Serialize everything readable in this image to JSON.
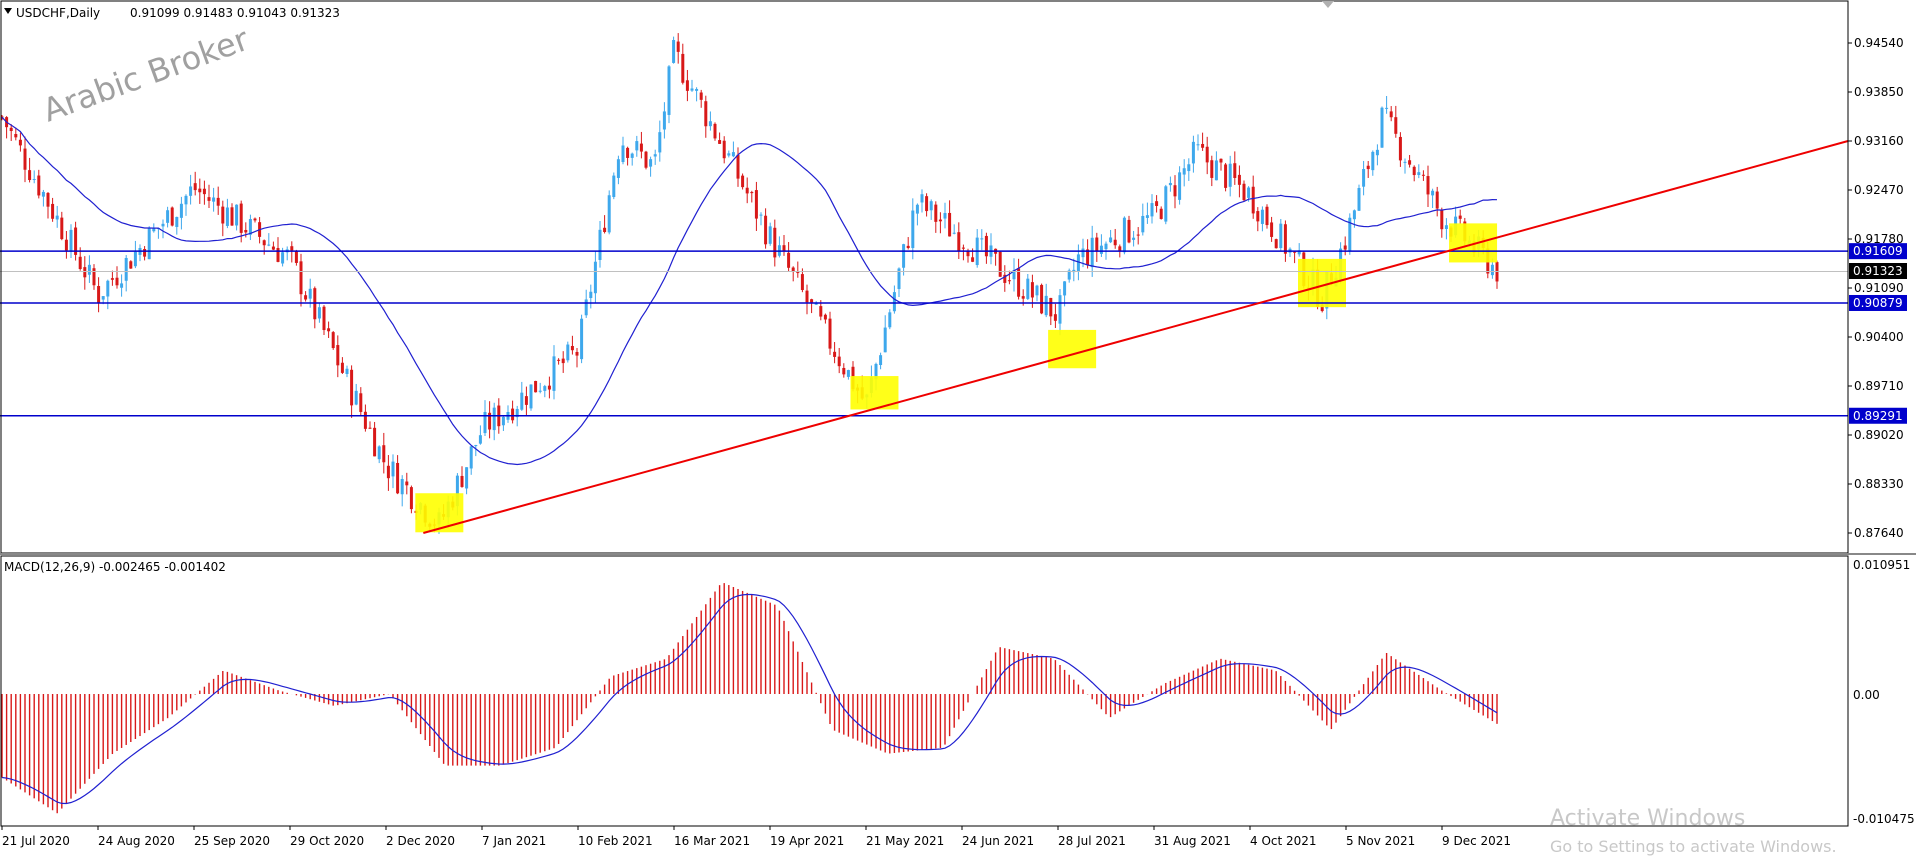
{
  "chart_data": [
    {
      "type": "candlestick",
      "header": {
        "symbol_label": "USDCHF,Daily",
        "ohlc_text": "0.91099 0.91483 0.91043 0.91323"
      },
      "watermark": "Arabic Broker",
      "price_axis": {
        "ticks": [
          "0.94540",
          "0.93850",
          "0.93160",
          "0.92470",
          "0.91780",
          "0.91090",
          "0.90400",
          "0.89710",
          "0.89020",
          "0.88330",
          "0.87640"
        ],
        "tick_values": [
          0.9454,
          0.9385,
          0.9316,
          0.9247,
          0.9178,
          0.9109,
          0.904,
          0.8971,
          0.8902,
          0.8833,
          0.8764
        ]
      },
      "x_axis": {
        "ticks": [
          "21 Jul 2020",
          "24 Aug 2020",
          "25 Sep 2020",
          "29 Oct 2020",
          "2 Dec 2020",
          "7 Jan 2021",
          "10 Feb 2021",
          "16 Mar 2021",
          "19 Apr 2021",
          "21 May 2021",
          "24 Jun 2021",
          "28 Jul 2021",
          "31 Aug 2021",
          "4 Oct 2021",
          "5 Nov 2021",
          "9 Dec 2021"
        ]
      },
      "horizontal_levels": [
        {
          "label": "0.91609",
          "value": 0.91609,
          "color": "#0000cc"
        },
        {
          "label": "0.90879",
          "value": 0.90879,
          "color": "#0000cc"
        },
        {
          "label": "0.89291",
          "value": 0.89291,
          "color": "#0000cc"
        }
      ],
      "current_price": {
        "label": "0.91323",
        "value": 0.91323
      },
      "trendline": {
        "color": "#ee0000",
        "from": {
          "date": "16 Dec 2020",
          "price": 0.8764
        },
        "to": {
          "date": "end of visible range",
          "price": 0.9316
        }
      },
      "moving_average_color": "#2020d0",
      "bull_color": "#3ea8ec",
      "bear_color": "#d81818",
      "highlight_color": "#ffff00",
      "highlight_zones": [
        {
          "near": "22 Dec 2020",
          "price_range": [
            0.8765,
            0.882
          ]
        },
        {
          "near": "24 May 2021",
          "price_range": [
            0.8938,
            0.8985
          ]
        },
        {
          "near": "2 Aug 2021",
          "price_range": [
            0.8996,
            0.905
          ]
        },
        {
          "near": "28 Oct 2021",
          "price_range": [
            0.9082,
            0.915
          ]
        },
        {
          "near": "20 Dec 2021",
          "price_range": [
            0.9145,
            0.92
          ]
        }
      ],
      "approx_series": {
        "dates": [
          "21 Jul 2020",
          "24 Aug 2020",
          "25 Sep 2020",
          "29 Oct 2020",
          "2 Dec 2020",
          "22 Dec 2020",
          "7 Jan 2021",
          "10 Feb 2021",
          "25 Feb 2021",
          "9 Mar 2021",
          "16 Mar 2021",
          "19 Apr 2021",
          "21 May 2021",
          "8 Jun 2021",
          "24 Jun 2021",
          "28 Jul 2021",
          "4 Aug 2021",
          "31 Aug 2021",
          "15 Sep 2021",
          "4 Oct 2021",
          "28 Oct 2021",
          "5 Nov 2021",
          "18 Nov 2021",
          "9 Dec 2021",
          "29 Dec 2021"
        ],
        "close": [
          0.935,
          0.91,
          0.925,
          0.915,
          0.886,
          0.8775,
          0.891,
          0.902,
          0.932,
          0.928,
          0.944,
          0.918,
          0.8945,
          0.923,
          0.918,
          0.907,
          0.915,
          0.921,
          0.93,
          0.924,
          0.9095,
          0.918,
          0.935,
          0.921,
          0.9132
        ]
      }
    },
    {
      "type": "histogram",
      "title": "MACD(12,26,9) -0.002465 -0.001402",
      "y_ticks": [
        "0.010951",
        "0.00",
        "-0.010475"
      ],
      "ylim": [
        -0.010475,
        0.010951
      ],
      "histogram_color": "#d81818",
      "signal_color": "#2020d0",
      "approx_macd": [
        -0.007,
        -0.01,
        -0.005,
        -0.002,
        0.002,
        0.0003,
        -0.001,
        0.0,
        -0.006,
        -0.006,
        -0.0045,
        0.0015,
        0.003,
        0.0095,
        0.0075,
        -0.003,
        -0.005,
        -0.0045,
        0.004,
        0.003,
        -0.002,
        0.0009,
        0.003,
        0.002,
        -0.003,
        0.0035,
        0.0003,
        -0.0025
      ]
    }
  ],
  "watermark_overlay": {
    "line1": "Activate Windows",
    "line2": "Go to Settings to activate Windows."
  }
}
